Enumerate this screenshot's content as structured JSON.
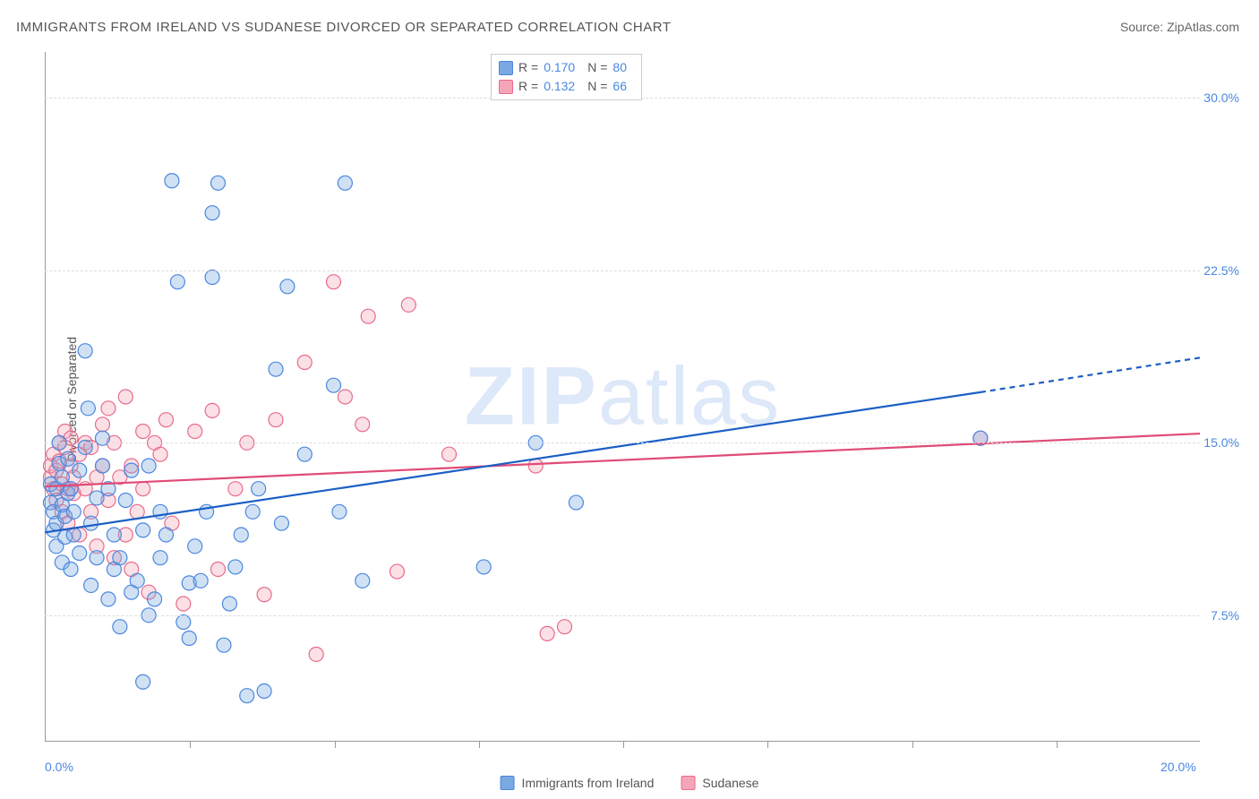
{
  "title": "IMMIGRANTS FROM IRELAND VS SUDANESE DIVORCED OR SEPARATED CORRELATION CHART",
  "source_label": "Source:",
  "source_value": "ZipAtlas.com",
  "watermark": "ZIPatlas",
  "ylabel": "Divorced or Separated",
  "chart": {
    "type": "scatter",
    "xlim": [
      0,
      20
    ],
    "ylim": [
      2,
      32
    ],
    "x_ticks": [
      0,
      20
    ],
    "x_tick_labels": [
      "0.0%",
      "20.0%"
    ],
    "y_ticks": [
      7.5,
      15.0,
      22.5,
      30.0
    ],
    "y_tick_labels": [
      "7.5%",
      "15.0%",
      "22.5%",
      "30.0%"
    ],
    "grid_color": "#dddddd",
    "axis_color": "#999999",
    "background_color": "#ffffff",
    "marker_radius": 8,
    "marker_fill_opacity": 0.35,
    "marker_stroke_width": 1.2,
    "series": [
      {
        "name": "Immigrants from Ireland",
        "color_fill": "#7aa8e0",
        "color_stroke": "#4a87e0",
        "r_value": "0.170",
        "n_value": "80",
        "trend": {
          "x1": 0,
          "y1": 11.1,
          "x2": 16.2,
          "y2": 17.2,
          "x2_ext": 20,
          "y2_ext": 18.7,
          "color": "#1b5fc5",
          "width": 2.2
        },
        "points": [
          [
            0.1,
            13.2
          ],
          [
            0.1,
            12.4
          ],
          [
            0.15,
            12.0
          ],
          [
            0.15,
            11.2
          ],
          [
            0.2,
            13.0
          ],
          [
            0.2,
            11.5
          ],
          [
            0.2,
            10.5
          ],
          [
            0.25,
            14.1
          ],
          [
            0.25,
            15.0
          ],
          [
            0.3,
            12.3
          ],
          [
            0.3,
            13.5
          ],
          [
            0.3,
            9.8
          ],
          [
            0.35,
            10.9
          ],
          [
            0.35,
            11.8
          ],
          [
            0.4,
            12.8
          ],
          [
            0.4,
            14.3
          ],
          [
            0.45,
            13.0
          ],
          [
            0.45,
            9.5
          ],
          [
            0.5,
            11.0
          ],
          [
            0.5,
            12.0
          ],
          [
            0.6,
            13.8
          ],
          [
            0.6,
            10.2
          ],
          [
            0.7,
            14.8
          ],
          [
            0.7,
            19.0
          ],
          [
            0.75,
            16.5
          ],
          [
            0.8,
            11.5
          ],
          [
            0.8,
            8.8
          ],
          [
            0.9,
            10.0
          ],
          [
            0.9,
            12.6
          ],
          [
            1.0,
            14.0
          ],
          [
            1.0,
            15.2
          ],
          [
            1.1,
            13.0
          ],
          [
            1.1,
            8.2
          ],
          [
            1.2,
            9.5
          ],
          [
            1.2,
            11.0
          ],
          [
            1.3,
            10.0
          ],
          [
            1.3,
            7.0
          ],
          [
            1.4,
            12.5
          ],
          [
            1.5,
            13.8
          ],
          [
            1.5,
            8.5
          ],
          [
            1.6,
            9.0
          ],
          [
            1.7,
            11.2
          ],
          [
            1.7,
            4.6
          ],
          [
            1.8,
            14.0
          ],
          [
            1.8,
            7.5
          ],
          [
            1.9,
            8.2
          ],
          [
            2.0,
            10.0
          ],
          [
            2.0,
            12.0
          ],
          [
            2.1,
            11.0
          ],
          [
            2.2,
            26.4
          ],
          [
            2.3,
            22.0
          ],
          [
            2.4,
            7.2
          ],
          [
            2.5,
            8.9
          ],
          [
            2.5,
            6.5
          ],
          [
            2.6,
            10.5
          ],
          [
            2.7,
            9.0
          ],
          [
            2.8,
            12.0
          ],
          [
            2.9,
            22.2
          ],
          [
            2.9,
            25.0
          ],
          [
            3.0,
            26.3
          ],
          [
            3.1,
            6.2
          ],
          [
            3.2,
            8.0
          ],
          [
            3.3,
            9.6
          ],
          [
            3.4,
            11.0
          ],
          [
            3.5,
            4.0
          ],
          [
            3.6,
            12.0
          ],
          [
            3.7,
            13.0
          ],
          [
            3.8,
            4.2
          ],
          [
            4.0,
            18.2
          ],
          [
            4.1,
            11.5
          ],
          [
            4.2,
            21.8
          ],
          [
            4.5,
            14.5
          ],
          [
            5.0,
            17.5
          ],
          [
            5.1,
            12.0
          ],
          [
            5.2,
            26.3
          ],
          [
            5.5,
            9.0
          ],
          [
            7.6,
            9.6
          ],
          [
            8.5,
            15.0
          ],
          [
            9.2,
            12.4
          ],
          [
            16.2,
            15.2
          ]
        ]
      },
      {
        "name": "Sudanese",
        "color_fill": "#f4a6b8",
        "color_stroke": "#e86b8a",
        "r_value": "0.132",
        "n_value": "66",
        "trend": {
          "x1": 0,
          "y1": 13.1,
          "x2": 20,
          "y2": 15.4,
          "color": "#e04b77",
          "width": 2.2
        },
        "points": [
          [
            0.1,
            13.5
          ],
          [
            0.1,
            14.0
          ],
          [
            0.15,
            13.0
          ],
          [
            0.15,
            14.5
          ],
          [
            0.2,
            12.5
          ],
          [
            0.2,
            13.8
          ],
          [
            0.25,
            15.0
          ],
          [
            0.25,
            14.2
          ],
          [
            0.3,
            13.2
          ],
          [
            0.3,
            12.0
          ],
          [
            0.35,
            14.8
          ],
          [
            0.35,
            15.5
          ],
          [
            0.4,
            13.0
          ],
          [
            0.4,
            11.5
          ],
          [
            0.45,
            14.0
          ],
          [
            0.45,
            15.2
          ],
          [
            0.5,
            13.5
          ],
          [
            0.5,
            12.8
          ],
          [
            0.6,
            14.5
          ],
          [
            0.6,
            11.0
          ],
          [
            0.7,
            15.0
          ],
          [
            0.7,
            13.0
          ],
          [
            0.8,
            12.0
          ],
          [
            0.8,
            14.8
          ],
          [
            0.9,
            10.5
          ],
          [
            0.9,
            13.5
          ],
          [
            1.0,
            15.8
          ],
          [
            1.0,
            14.0
          ],
          [
            1.1,
            12.5
          ],
          [
            1.1,
            16.5
          ],
          [
            1.2,
            10.0
          ],
          [
            1.2,
            15.0
          ],
          [
            1.3,
            13.5
          ],
          [
            1.4,
            11.0
          ],
          [
            1.4,
            17.0
          ],
          [
            1.5,
            14.0
          ],
          [
            1.5,
            9.5
          ],
          [
            1.6,
            12.0
          ],
          [
            1.7,
            15.5
          ],
          [
            1.7,
            13.0
          ],
          [
            1.8,
            8.5
          ],
          [
            1.9,
            15.0
          ],
          [
            2.0,
            14.5
          ],
          [
            2.1,
            16.0
          ],
          [
            2.2,
            11.5
          ],
          [
            2.4,
            8.0
          ],
          [
            2.6,
            15.5
          ],
          [
            2.9,
            16.4
          ],
          [
            3.0,
            9.5
          ],
          [
            3.3,
            13.0
          ],
          [
            3.5,
            15.0
          ],
          [
            3.8,
            8.4
          ],
          [
            4.0,
            16.0
          ],
          [
            4.5,
            18.5
          ],
          [
            4.7,
            5.8
          ],
          [
            5.0,
            22.0
          ],
          [
            5.5,
            15.8
          ],
          [
            5.6,
            20.5
          ],
          [
            6.1,
            9.4
          ],
          [
            6.3,
            21.0
          ],
          [
            7.0,
            14.5
          ],
          [
            8.5,
            14.0
          ],
          [
            8.7,
            6.7
          ],
          [
            9.0,
            7.0
          ],
          [
            16.2,
            15.2
          ],
          [
            5.2,
            17.0
          ]
        ]
      }
    ]
  },
  "legend_bottom": {
    "series1": "Immigrants from Ireland",
    "series2": "Sudanese"
  }
}
